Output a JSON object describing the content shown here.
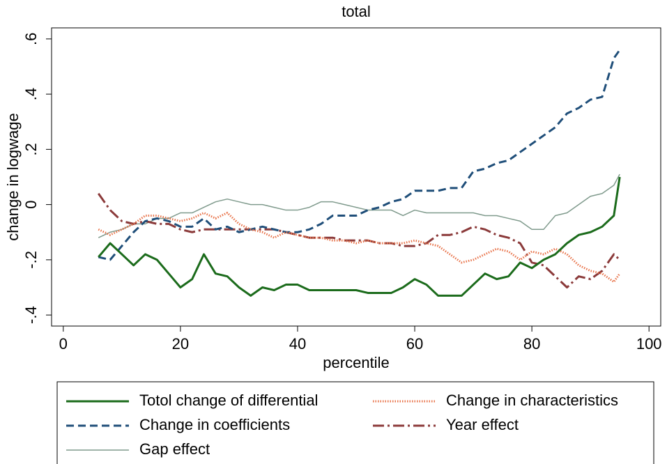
{
  "chart_data": {
    "type": "line",
    "title": "total",
    "x_label": "percentile",
    "y_label": "change in logwage",
    "x": [
      6,
      8,
      10,
      12,
      14,
      16,
      18,
      20,
      22,
      24,
      26,
      28,
      30,
      32,
      34,
      36,
      38,
      40,
      42,
      44,
      46,
      48,
      50,
      52,
      54,
      56,
      58,
      60,
      62,
      64,
      66,
      68,
      70,
      72,
      74,
      76,
      78,
      80,
      82,
      84,
      86,
      88,
      90,
      92,
      94,
      95
    ],
    "series": [
      {
        "name": "Totol change of differential",
        "color": "#1b6b1b",
        "dash": "solid",
        "values": [
          -0.19,
          -0.14,
          -0.18,
          -0.22,
          -0.18,
          -0.2,
          -0.25,
          -0.3,
          -0.27,
          -0.18,
          -0.25,
          -0.26,
          -0.3,
          -0.33,
          -0.3,
          -0.31,
          -0.29,
          -0.29,
          -0.31,
          -0.31,
          -0.31,
          -0.31,
          -0.31,
          -0.32,
          -0.32,
          -0.32,
          -0.3,
          -0.27,
          -0.29,
          -0.33,
          -0.33,
          -0.33,
          -0.29,
          -0.25,
          -0.27,
          -0.26,
          -0.21,
          -0.23,
          -0.2,
          -0.18,
          -0.14,
          -0.11,
          -0.1,
          -0.08,
          -0.04,
          0.1
        ]
      },
      {
        "name": "Change in characteristics",
        "color": "#e8734a",
        "dash": "dotted",
        "values": [
          -0.09,
          -0.11,
          -0.09,
          -0.07,
          -0.04,
          -0.04,
          -0.05,
          -0.06,
          -0.05,
          -0.03,
          -0.05,
          -0.03,
          -0.07,
          -0.09,
          -0.1,
          -0.12,
          -0.1,
          -0.11,
          -0.12,
          -0.12,
          -0.13,
          -0.13,
          -0.14,
          -0.13,
          -0.14,
          -0.14,
          -0.14,
          -0.13,
          -0.14,
          -0.15,
          -0.18,
          -0.21,
          -0.2,
          -0.18,
          -0.16,
          -0.17,
          -0.2,
          -0.17,
          -0.18,
          -0.16,
          -0.18,
          -0.22,
          -0.24,
          -0.25,
          -0.28,
          -0.25
        ]
      },
      {
        "name": "Change in coefficients",
        "color": "#1f4e79",
        "dash": "dashed",
        "values": [
          -0.19,
          -0.2,
          -0.15,
          -0.1,
          -0.06,
          -0.05,
          -0.06,
          -0.08,
          -0.08,
          -0.05,
          -0.09,
          -0.08,
          -0.1,
          -0.09,
          -0.08,
          -0.09,
          -0.1,
          -0.1,
          -0.09,
          -0.07,
          -0.04,
          -0.04,
          -0.04,
          -0.02,
          -0.01,
          0.01,
          0.02,
          0.05,
          0.05,
          0.05,
          0.06,
          0.06,
          0.12,
          0.13,
          0.15,
          0.16,
          0.19,
          0.22,
          0.25,
          0.28,
          0.33,
          0.35,
          0.38,
          0.39,
          0.53,
          0.56
        ]
      },
      {
        "name": "Year effect",
        "color": "#8b3a3a",
        "dash": "dash-dot",
        "values": [
          0.04,
          -0.02,
          -0.06,
          -0.07,
          -0.06,
          -0.07,
          -0.07,
          -0.09,
          -0.1,
          -0.09,
          -0.09,
          -0.09,
          -0.09,
          -0.09,
          -0.09,
          -0.09,
          -0.1,
          -0.11,
          -0.12,
          -0.12,
          -0.12,
          -0.13,
          -0.13,
          -0.13,
          -0.14,
          -0.14,
          -0.15,
          -0.15,
          -0.14,
          -0.11,
          -0.11,
          -0.1,
          -0.08,
          -0.09,
          -0.11,
          -0.12,
          -0.14,
          -0.21,
          -0.22,
          -0.26,
          -0.3,
          -0.26,
          -0.27,
          -0.24,
          -0.18,
          -0.2
        ]
      },
      {
        "name": "Gap effect",
        "color": "#7f9a8c",
        "dash": "thin",
        "values": [
          -0.12,
          -0.1,
          -0.09,
          -0.07,
          -0.07,
          -0.05,
          -0.05,
          -0.03,
          -0.03,
          -0.01,
          0.01,
          0.02,
          0.01,
          0,
          0,
          -0.01,
          -0.02,
          -0.02,
          -0.01,
          0.01,
          0.01,
          0,
          -0.01,
          -0.02,
          -0.02,
          -0.02,
          -0.04,
          -0.02,
          -0.03,
          -0.03,
          -0.03,
          -0.03,
          -0.03,
          -0.04,
          -0.04,
          -0.05,
          -0.06,
          -0.09,
          -0.09,
          -0.04,
          -0.03,
          0,
          0.03,
          0.04,
          0.07,
          0.11
        ]
      }
    ],
    "xlim": [
      -2,
      102
    ],
    "xticks": [
      0,
      20,
      40,
      60,
      80,
      100
    ],
    "ylim": [
      -0.44,
      0.64
    ],
    "yticks": [
      {
        "value": -0.4,
        "label": "-.4"
      },
      {
        "value": -0.2,
        "label": "-.2"
      },
      0,
      {
        "value": 0.2,
        "label": ".2"
      },
      {
        "value": 0.4,
        "label": ".4"
      },
      {
        "value": 0.6,
        "label": ".6"
      }
    ],
    "grid": false,
    "legend": "bottom"
  }
}
